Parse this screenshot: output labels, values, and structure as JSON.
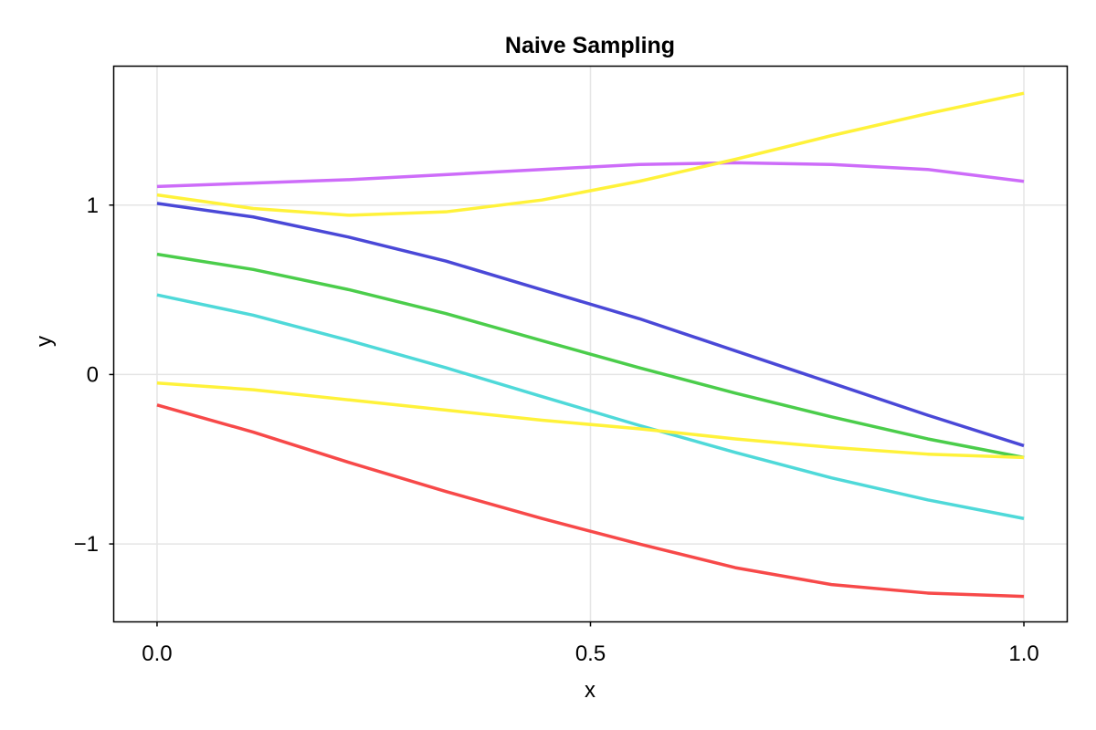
{
  "chart_data": {
    "type": "line",
    "title": "Naive Sampling",
    "xlabel": "x",
    "ylabel": "y",
    "xlim": [
      -0.05,
      1.05
    ],
    "ylim": [
      -1.46,
      1.82
    ],
    "grid": true,
    "legend": "none",
    "x_ticks": [
      {
        "value": 0.0,
        "label": "0.0"
      },
      {
        "value": 0.5,
        "label": "0.5"
      },
      {
        "value": 1.0,
        "label": "1.0"
      }
    ],
    "y_ticks": [
      {
        "value": -1,
        "label": "−1"
      },
      {
        "value": 0,
        "label": "0"
      },
      {
        "value": 1,
        "label": "1"
      }
    ],
    "x": [
      0.0,
      0.111,
      0.222,
      0.333,
      0.444,
      0.556,
      0.667,
      0.778,
      0.889,
      1.0
    ],
    "series": [
      {
        "color": "#cd6cf9",
        "values": [
          1.11,
          1.13,
          1.15,
          1.18,
          1.21,
          1.24,
          1.25,
          1.24,
          1.21,
          1.14
        ]
      },
      {
        "color": "#fff23a",
        "values": [
          1.06,
          0.98,
          0.94,
          0.96,
          1.03,
          1.14,
          1.27,
          1.41,
          1.54,
          1.66
        ]
      },
      {
        "color": "#4a48d7",
        "values": [
          1.01,
          0.93,
          0.81,
          0.67,
          0.5,
          0.33,
          0.14,
          -0.05,
          -0.24,
          -0.42
        ]
      },
      {
        "color": "#4bcd4b",
        "values": [
          0.71,
          0.62,
          0.5,
          0.36,
          0.2,
          0.04,
          -0.11,
          -0.25,
          -0.38,
          -0.49
        ]
      },
      {
        "color": "#4fd9d9",
        "values": [
          0.47,
          0.35,
          0.2,
          0.04,
          -0.13,
          -0.3,
          -0.46,
          -0.61,
          -0.74,
          -0.85
        ]
      },
      {
        "color": "#fff23a",
        "values": [
          -0.05,
          -0.09,
          -0.15,
          -0.21,
          -0.27,
          -0.32,
          -0.38,
          -0.43,
          -0.47,
          -0.49
        ]
      },
      {
        "color": "#f74949",
        "values": [
          -0.18,
          -0.34,
          -0.52,
          -0.69,
          -0.85,
          -1.0,
          -1.14,
          -1.24,
          -1.29,
          -1.31
        ]
      }
    ]
  }
}
